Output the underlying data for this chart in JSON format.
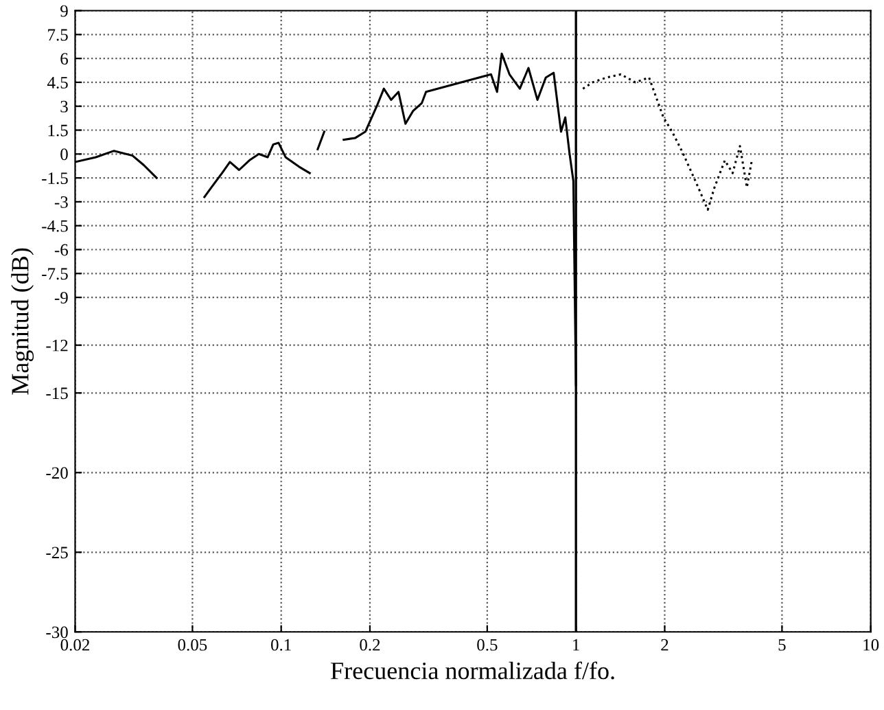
{
  "chart_data": {
    "type": "line",
    "xlabel": "Frecuencia normalizada f/fo.",
    "ylabel": "Magnitud (dB)",
    "log": "x",
    "xlim": [
      0.02,
      10
    ],
    "ylim": [
      -30,
      9
    ],
    "xticks": [
      0.02,
      0.05,
      0.1,
      0.2,
      0.5,
      1,
      2,
      5,
      10
    ],
    "yticks": [
      9,
      7.5,
      6,
      4.5,
      3,
      1.5,
      0,
      -1.5,
      -3,
      -4.5,
      -6,
      -7.5,
      -9,
      -12,
      -15,
      -20,
      -25,
      -30
    ],
    "grid": true,
    "marker": "none",
    "ref_lines": [
      {
        "axis": "x",
        "value": 1,
        "color": "#000000",
        "line_style": "solid"
      }
    ],
    "series": [
      {
        "color": "#000000",
        "line_style": "solid",
        "x": [
          0.02,
          0.0235,
          0.0271,
          0.0313,
          0.0342,
          0.0378,
          0.045,
          0.0549,
          0.0585,
          0.063,
          0.067,
          0.072,
          0.078,
          0.084,
          0.09,
          0.094,
          0.098,
          0.1035,
          0.115,
          0.125,
          0.128,
          0.133,
          0.14,
          0.147,
          0.163,
          0.178,
          0.193,
          0.211,
          0.223,
          0.236,
          0.25,
          0.264,
          0.28,
          0.3,
          0.31,
          0.515,
          0.54,
          0.56,
          0.595,
          0.645,
          0.69,
          0.74,
          0.79,
          0.84,
          0.89,
          0.92,
          0.95,
          0.98,
          1.0
        ],
        "values": [
          -0.5,
          -0.2,
          0.2,
          -0.1,
          -0.7,
          -1.5,
          null,
          -2.7,
          -2,
          -1.2,
          -0.5,
          -1,
          -0.4,
          0,
          -0.2,
          0.6,
          0.7,
          -0.2,
          -0.8,
          -1.2,
          null,
          0.3,
          1.4,
          null,
          0.9,
          1,
          1.4,
          3,
          4.1,
          3.4,
          3.9,
          1.9,
          2.7,
          3.2,
          3.9,
          5,
          3.9,
          6.3,
          5,
          4.1,
          5.4,
          3.4,
          4.8,
          5.1,
          1.4,
          2.3,
          0.1,
          -1.7,
          -14.5
        ]
      },
      {
        "color": "#000000",
        "line_style": "dotted",
        "x": [
          1.056,
          1.14,
          1.27,
          1.42,
          1.59,
          1.77,
          1.98,
          2.12,
          2.3,
          2.6,
          2.8,
          2.95,
          3.2,
          3.4,
          3.6,
          3.8,
          3.95
        ],
        "values": [
          4.1,
          4.5,
          4.8,
          5,
          4.5,
          4.8,
          2.3,
          1.4,
          0.1,
          -2.1,
          -3.5,
          -2.1,
          -0.4,
          -1.2,
          0.5,
          -2.1,
          -0.4
        ]
      }
    ]
  }
}
